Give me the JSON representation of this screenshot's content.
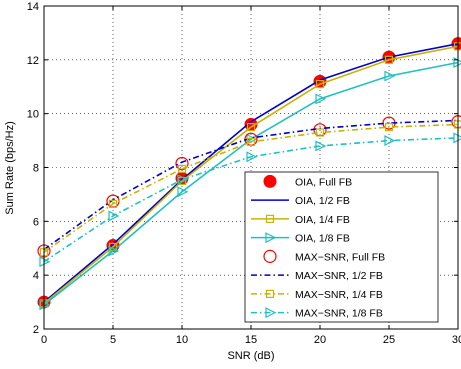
{
  "chart_data": {
    "type": "line",
    "xlabel": "SNR (dB)",
    "ylabel": "Sum Rate (bps/Hz)",
    "xlim": [
      0,
      30
    ],
    "ylim": [
      2,
      14
    ],
    "xticks": [
      0,
      5,
      10,
      15,
      20,
      25,
      30
    ],
    "yticks": [
      2,
      4,
      6,
      8,
      10,
      12,
      14
    ],
    "grid": true,
    "legend_position": "bottom-right",
    "x": [
      0,
      5,
      10,
      15,
      20,
      25,
      30
    ],
    "series": [
      {
        "name": "OIA, Full FB",
        "color": "#ff0000",
        "line": "none",
        "marker": "filled-circle",
        "values": [
          3.0,
          5.1,
          7.6,
          9.6,
          11.2,
          12.1,
          12.6
        ]
      },
      {
        "name": "OIA, 1/2 FB",
        "color": "#0000cc",
        "line": "solid",
        "marker": "none",
        "values": [
          3.0,
          5.15,
          7.55,
          9.7,
          11.25,
          12.1,
          12.6
        ]
      },
      {
        "name": "OIA, 1/4 FB",
        "color": "#c8b400",
        "line": "solid",
        "marker": "square",
        "values": [
          2.95,
          5.05,
          7.5,
          9.5,
          11.1,
          12.0,
          12.5
        ]
      },
      {
        "name": "OIA, 1/8 FB",
        "color": "#20c0c0",
        "line": "solid",
        "marker": "triangle-right",
        "values": [
          2.9,
          4.9,
          7.1,
          9.05,
          10.55,
          11.4,
          11.9
        ]
      },
      {
        "name": "MAX−SNR, Full FB",
        "color": "#ff0000",
        "line": "none",
        "marker": "open-circle",
        "values": [
          4.9,
          6.75,
          8.15,
          9.05,
          9.4,
          9.65,
          9.7
        ]
      },
      {
        "name": "MAX−SNR, 1/2 FB",
        "color": "#0000cc",
        "line": "dashdot",
        "marker": "none",
        "values": [
          4.95,
          6.8,
          8.2,
          9.1,
          9.45,
          9.65,
          9.75
        ]
      },
      {
        "name": "MAX−SNR, 1/4 FB",
        "color": "#c8b400",
        "line": "dashdot",
        "marker": "square",
        "values": [
          4.85,
          6.65,
          7.95,
          8.95,
          9.3,
          9.5,
          9.6
        ]
      },
      {
        "name": "MAX−SNR, 1/8 FB",
        "color": "#20c0c0",
        "line": "dashdot",
        "marker": "triangle-right",
        "values": [
          4.5,
          6.2,
          7.55,
          8.4,
          8.8,
          9.0,
          9.1
        ]
      }
    ]
  }
}
